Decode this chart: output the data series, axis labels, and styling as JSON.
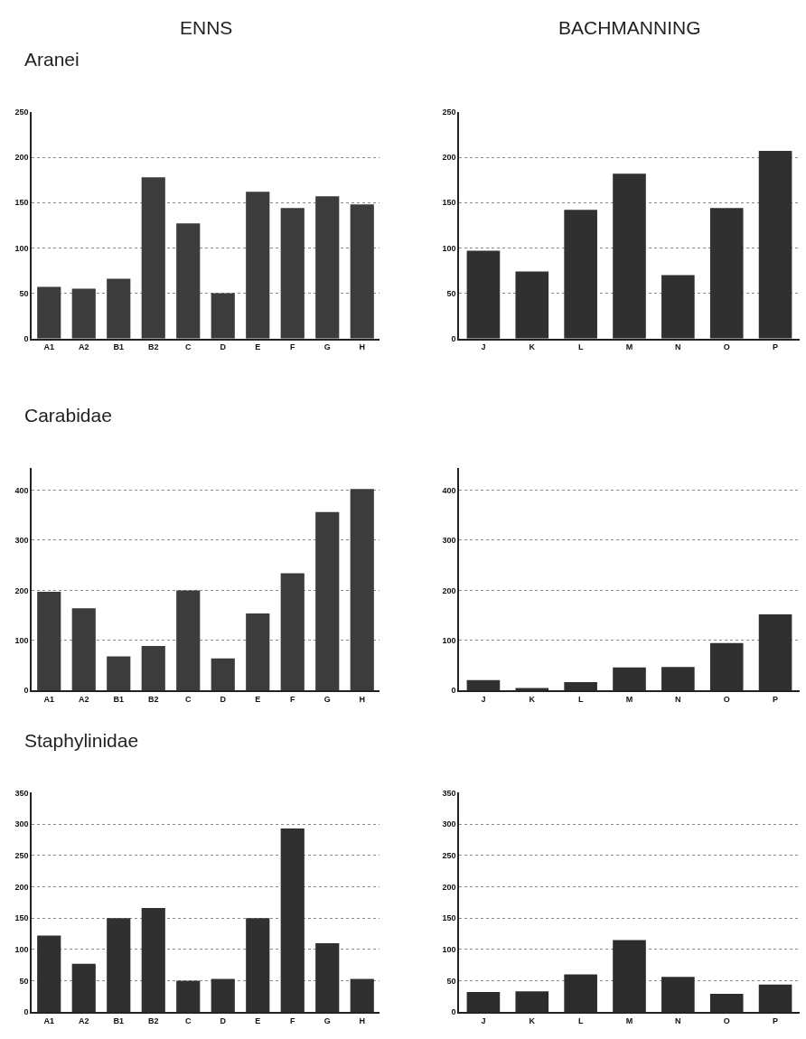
{
  "chart_data": [
    {
      "type": "bar",
      "title": "Aranei",
      "annotations": [
        "ENNS"
      ],
      "categories": [
        "A1",
        "A2",
        "B1",
        "B2",
        "C",
        "D",
        "E",
        "F",
        "G",
        "H"
      ],
      "values": [
        57,
        55,
        66,
        178,
        127,
        50,
        162,
        144,
        157,
        148
      ],
      "color": "#3c3c3c",
      "ylim": [
        0,
        250
      ],
      "yticks": [
        0,
        50,
        100,
        150,
        200,
        250
      ],
      "grid": "y"
    },
    {
      "type": "bar",
      "annotations": [
        "BACHMANNING"
      ],
      "categories": [
        "J",
        "K",
        "L",
        "M",
        "N",
        "O",
        "P"
      ],
      "values": [
        97,
        74,
        142,
        182,
        70,
        144,
        207
      ],
      "color": "#303030",
      "ylim": [
        0,
        250
      ],
      "yticks": [
        0,
        50,
        100,
        150,
        200,
        250
      ],
      "grid": "y"
    },
    {
      "type": "bar",
      "title": "Carabidae",
      "categories": [
        "A1",
        "A2",
        "B1",
        "B2",
        "C",
        "D",
        "E",
        "F",
        "G",
        "H"
      ],
      "values": [
        197,
        164,
        68,
        89,
        200,
        64,
        154,
        234,
        356,
        402
      ],
      "color": "#3c3c3c",
      "ylim": [
        0,
        445
      ],
      "yticks": [
        0,
        100,
        200,
        300,
        400
      ],
      "grid": "y"
    },
    {
      "type": "bar",
      "categories": [
        "J",
        "K",
        "L",
        "M",
        "N",
        "O",
        "P"
      ],
      "values": [
        21,
        5,
        17,
        46,
        47,
        95,
        152
      ],
      "color": "#303030",
      "ylim": [
        0,
        445
      ],
      "yticks": [
        0,
        100,
        200,
        300,
        400
      ],
      "grid": "y"
    },
    {
      "type": "bar",
      "title": "Staphylinidae",
      "categories": [
        "A1",
        "A2",
        "B1",
        "B2",
        "C",
        "D",
        "E",
        "F",
        "G",
        "H"
      ],
      "values": [
        122,
        77,
        150,
        166,
        50,
        53,
        150,
        293,
        110,
        53
      ],
      "color": "#303030",
      "ylim": [
        0,
        350
      ],
      "yticks": [
        0,
        50,
        100,
        150,
        200,
        250,
        300,
        350
      ],
      "grid": "y"
    },
    {
      "type": "bar",
      "categories": [
        "J",
        "K",
        "L",
        "M",
        "N",
        "O",
        "P"
      ],
      "values": [
        32,
        33,
        60,
        115,
        56,
        29,
        44
      ],
      "color": "#2c2c2c",
      "ylim": [
        0,
        350
      ],
      "yticks": [
        0,
        50,
        100,
        150,
        200,
        250,
        300,
        350
      ],
      "grid": "y"
    }
  ]
}
